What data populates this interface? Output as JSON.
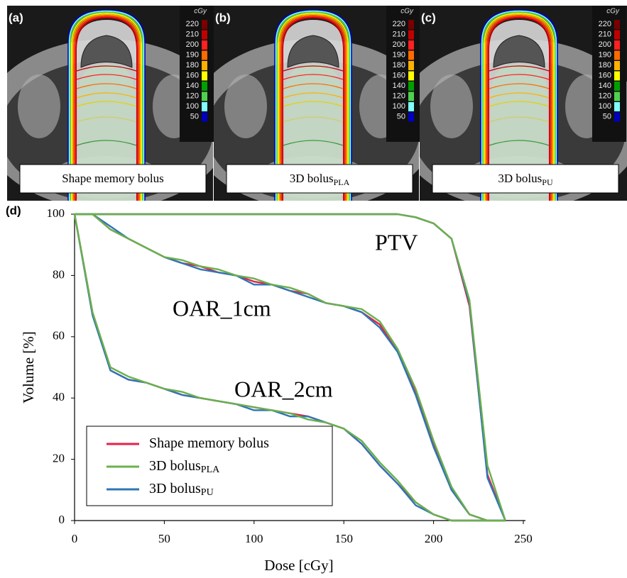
{
  "images": {
    "panels": [
      {
        "letter": "(a)",
        "label": "Shape memory bolus"
      },
      {
        "letter": "(b)",
        "label": "3D bolus",
        "label_sub": "PLA"
      },
      {
        "letter": "(c)",
        "label": "3D bolus",
        "label_sub": "PU"
      }
    ],
    "colorbar": {
      "unit": "cGy",
      "levels": [
        220,
        210,
        200,
        190,
        180,
        160,
        140,
        120,
        100,
        50
      ],
      "colors": [
        "#7a0000",
        "#c00000",
        "#ff2020",
        "#ff6a00",
        "#ffb000",
        "#ffff00",
        "#00a000",
        "#50d050",
        "#80ffff",
        "#0000c0"
      ]
    }
  },
  "chart_data": {
    "type": "line",
    "panel_letter": "(d)",
    "xlabel": "Dose [cGy]",
    "ylabel": "Volume [%]",
    "x": [
      0,
      10,
      20,
      30,
      40,
      50,
      60,
      70,
      80,
      90,
      100,
      110,
      120,
      130,
      140,
      150,
      160,
      170,
      180,
      190,
      200,
      210,
      220,
      230,
      240
    ],
    "xlim": [
      0,
      250
    ],
    "xticks": [
      0,
      50,
      100,
      150,
      200,
      250
    ],
    "ylim": [
      0,
      100
    ],
    "yticks": [
      0,
      20,
      40,
      60,
      80,
      100
    ],
    "annotations": [
      "PTV",
      "OAR_1cm",
      "OAR_2cm"
    ],
    "legend": "lower left",
    "series": [
      {
        "name": "Shape memory bolus",
        "color": "#e8204a",
        "ptv": [
          100,
          100,
          100,
          100,
          100,
          100,
          100,
          100,
          100,
          100,
          100,
          100,
          100,
          100,
          100,
          100,
          100,
          100,
          100,
          99,
          97,
          92,
          70,
          15,
          0
        ],
        "oar_1cm": [
          100,
          100,
          95,
          92,
          89,
          86,
          84,
          83,
          81,
          80,
          78,
          77,
          75,
          74,
          71,
          70,
          68,
          64,
          55,
          42,
          25,
          10,
          2,
          0,
          0
        ],
        "oar_2cm": [
          100,
          68,
          49,
          46,
          45,
          43,
          41,
          40,
          39,
          38,
          37,
          36,
          35,
          34,
          32,
          30,
          25,
          18,
          12,
          6,
          2,
          0,
          0,
          0,
          0
        ]
      },
      {
        "name": "3D bolus",
        "name_sub": "PLA",
        "color": "#6ab04c",
        "ptv": [
          100,
          100,
          100,
          100,
          100,
          100,
          100,
          100,
          100,
          100,
          100,
          100,
          100,
          100,
          100,
          100,
          100,
          100,
          100,
          99,
          97,
          92,
          72,
          18,
          0
        ],
        "oar_1cm": [
          100,
          100,
          95,
          92,
          89,
          86,
          85,
          83,
          82,
          80,
          79,
          77,
          76,
          74,
          71,
          70,
          69,
          65,
          56,
          43,
          26,
          11,
          2,
          0,
          0
        ],
        "oar_2cm": [
          100,
          68,
          50,
          47,
          45,
          43,
          42,
          40,
          39,
          38,
          37,
          36,
          35,
          33,
          32,
          30,
          26,
          19,
          13,
          6,
          2,
          0,
          0,
          0,
          0
        ]
      },
      {
        "name": "3D bolus",
        "name_sub": "PU",
        "color": "#2e75b6",
        "ptv": [
          100,
          100,
          100,
          100,
          100,
          100,
          100,
          100,
          100,
          100,
          100,
          100,
          100,
          100,
          100,
          100,
          100,
          100,
          100,
          99,
          97,
          92,
          71,
          14,
          0
        ],
        "oar_1cm": [
          100,
          100,
          96,
          92,
          89,
          86,
          84,
          82,
          81,
          80,
          77,
          77,
          75,
          73,
          71,
          70,
          68,
          63,
          55,
          41,
          24,
          10,
          2,
          0,
          0
        ],
        "oar_2cm": [
          100,
          67,
          49,
          46,
          45,
          43,
          41,
          40,
          39,
          38,
          36,
          36,
          34,
          34,
          32,
          30,
          25,
          18,
          12,
          5,
          2,
          0,
          0,
          0,
          0
        ]
      }
    ]
  }
}
